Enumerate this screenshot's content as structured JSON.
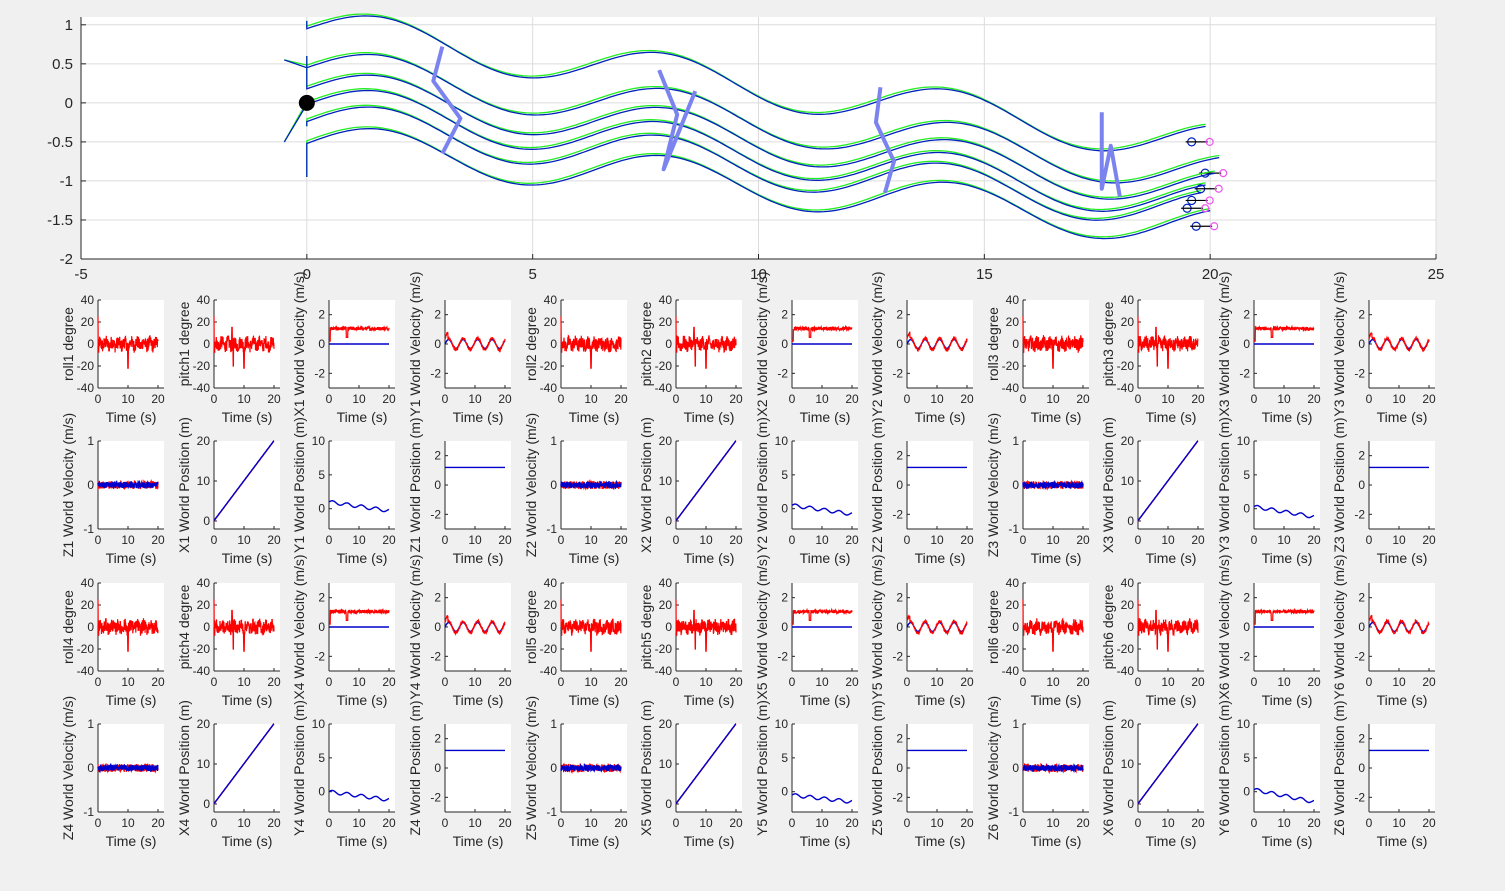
{
  "colors": {
    "figure_bg": "#f0f0f0",
    "axes_bg": "#ffffff",
    "grid": "#dcdcdc",
    "axis": "#262626",
    "measured": "#ff0000",
    "reference": "#0000cc",
    "path_actual": "#0022bb",
    "path_target": "#22ee22",
    "formation": "#7b83ee",
    "marker_start": "#000000",
    "robot_marker": "#ee55ee"
  },
  "chart_data": [
    {
      "type": "line",
      "role": "trajectory",
      "xlim": [
        -5,
        25
      ],
      "ylim": [
        -2,
        1.1
      ],
      "x_ticks": [
        -5,
        0,
        5,
        10,
        15,
        20,
        25
      ],
      "x_tick_labels": [
        "-5",
        "0",
        "5",
        "10",
        "15",
        "20",
        "25"
      ],
      "y_ticks": [
        -2,
        -1.5,
        -1,
        -0.5,
        0,
        0.5,
        1
      ],
      "y_tick_labels": [
        "-2",
        "-1.5",
        "-1",
        "-0.5",
        "0",
        "0.5",
        "1"
      ],
      "grid": true,
      "start_marker": {
        "x": 0,
        "y": 0
      },
      "robot_paths": [
        {
          "start": [
            0,
            1.05
          ],
          "end": [
            19.9,
            -0.5
          ],
          "offset": 0.97
        },
        {
          "start": [
            -0.5,
            0.55
          ],
          "end": [
            20.2,
            -0.9
          ],
          "offset": 0.47
        },
        {
          "start": [
            -0.5,
            -0.5
          ],
          "end": [
            19.9,
            -1.25
          ],
          "offset": 0
        },
        {
          "start": [
            0,
            -0.95
          ],
          "end": [
            20.0,
            -1.58
          ],
          "offset": -0.5
        },
        {
          "start": [
            0,
            -0.3
          ],
          "end": [
            19.8,
            -1.35
          ],
          "offset": -0.22
        },
        {
          "start": [
            0,
            0.6
          ],
          "end": [
            20.1,
            -1.1
          ],
          "offset": 0.2
        }
      ],
      "formations": [
        {
          "points": [
            [
              3.0,
              0.72
            ],
            [
              2.8,
              0.28
            ],
            [
              3.4,
              -0.2
            ],
            [
              3.0,
              -0.65
            ]
          ]
        },
        {
          "points": [
            [
              7.8,
              0.42
            ],
            [
              8.2,
              -0.15
            ],
            [
              7.9,
              -0.85
            ],
            [
              8.6,
              0.15
            ]
          ]
        },
        {
          "points": [
            [
              12.7,
              0.2
            ],
            [
              12.6,
              -0.25
            ],
            [
              13.0,
              -0.75
            ],
            [
              12.8,
              -1.15
            ]
          ]
        },
        {
          "points": [
            [
              17.6,
              -0.12
            ],
            [
              17.6,
              -1.1
            ],
            [
              17.8,
              -0.55
            ],
            [
              18.0,
              -1.2
            ]
          ]
        }
      ]
    },
    {
      "type": "grid_of_line_plots",
      "x_ticks": [
        0,
        10,
        20
      ],
      "xlabel": "Time (s)",
      "column_templates": [
        {
          "kind": "roll",
          "ylim": [
            -40,
            40
          ],
          "yticks": [
            -40,
            -20,
            0,
            20,
            40
          ]
        },
        {
          "kind": "pitch",
          "ylim": [
            -40,
            40
          ],
          "yticks": [
            -40,
            -20,
            0,
            20,
            40
          ]
        },
        {
          "kind": "xvel",
          "ylim": [
            -3,
            3
          ],
          "yticks": [
            -2,
            0,
            2
          ]
        },
        {
          "kind": "yvel",
          "ylim": [
            -3,
            3
          ],
          "yticks": [
            -2,
            0,
            2
          ]
        }
      ],
      "rows": [
        {
          "panels": [
            {
              "ylabel": "roll1 degree",
              "kind": "roll"
            },
            {
              "ylabel": "pitch1 degree",
              "kind": "pitch"
            },
            {
              "ylabel": "X1 World Velocity (m/s)",
              "kind": "xvel"
            },
            {
              "ylabel": "Y1 World Velocity (m/s)",
              "kind": "yvel"
            },
            {
              "ylabel": "roll2 degree",
              "kind": "roll"
            },
            {
              "ylabel": "pitch2 degree",
              "kind": "pitch"
            },
            {
              "ylabel": "X2 World Velocity (m/s)",
              "kind": "xvel"
            },
            {
              "ylabel": "Y2 World Velocity (m/s)",
              "kind": "yvel"
            },
            {
              "ylabel": "roll3 degree",
              "kind": "roll"
            },
            {
              "ylabel": "pitch3 degree",
              "kind": "pitch"
            },
            {
              "ylabel": "X3 World Velocity (m/s)",
              "kind": "xvel"
            },
            {
              "ylabel": "Y3 World Velocity (m/s)",
              "kind": "yvel"
            }
          ]
        },
        {
          "panels": [
            {
              "ylabel": "Z1 World Velocity (m/s)",
              "kind": "zvel",
              "ylim": [
                -1,
                1
              ],
              "yticks": [
                -1,
                0,
                1
              ]
            },
            {
              "ylabel": "X1 World Position (m)",
              "kind": "xpos",
              "ylim": [
                -2,
                20
              ],
              "yticks": [
                0,
                10,
                20
              ]
            },
            {
              "ylabel": "Y1 World Position (m)",
              "kind": "ypos",
              "ylim": [
                -3,
                10
              ],
              "yticks": [
                0,
                5,
                10
              ],
              "start": 1.0,
              "end": -0.3
            },
            {
              "ylabel": "Z1 World Position (m)",
              "kind": "zpos",
              "ylim": [
                -3,
                3
              ],
              "yticks": [
                -2,
                0,
                2
              ]
            },
            {
              "ylabel": "Z2 World Velocity (m/s)",
              "kind": "zvel",
              "ylim": [
                -1,
                1
              ],
              "yticks": [
                -1,
                0,
                1
              ]
            },
            {
              "ylabel": "X2 World Position (m)",
              "kind": "xpos",
              "ylim": [
                -2,
                20
              ],
              "yticks": [
                0,
                10,
                20
              ]
            },
            {
              "ylabel": "Y2 World Position (m)",
              "kind": "ypos",
              "ylim": [
                -3,
                10
              ],
              "yticks": [
                0,
                5,
                10
              ],
              "start": 0.5,
              "end": -0.8
            },
            {
              "ylabel": "Z2 World Position (m)",
              "kind": "zpos",
              "ylim": [
                -3,
                3
              ],
              "yticks": [
                -2,
                0,
                2
              ]
            },
            {
              "ylabel": "Z3 World Velocity (m/s)",
              "kind": "zvel",
              "ylim": [
                -1,
                1
              ],
              "yticks": [
                -1,
                0,
                1
              ]
            },
            {
              "ylabel": "X3 World Position (m)",
              "kind": "xpos",
              "ylim": [
                -2,
                20
              ],
              "yticks": [
                0,
                10,
                20
              ]
            },
            {
              "ylabel": "Y3 World Position (m)",
              "kind": "ypos",
              "ylim": [
                -3,
                10
              ],
              "yticks": [
                0,
                5,
                10
              ],
              "start": 0.3,
              "end": -1.2
            },
            {
              "ylabel": "Z3 World Position (m)",
              "kind": "zpos",
              "ylim": [
                -3,
                3
              ],
              "yticks": [
                -2,
                0,
                2
              ]
            }
          ]
        },
        {
          "panels": [
            {
              "ylabel": "roll4 degree",
              "kind": "roll"
            },
            {
              "ylabel": "pitch4 degree",
              "kind": "pitch"
            },
            {
              "ylabel": "X4 World Velocity (m/s)",
              "kind": "xvel"
            },
            {
              "ylabel": "Y4 World Velocity (m/s)",
              "kind": "yvel"
            },
            {
              "ylabel": "roll5 degree",
              "kind": "roll"
            },
            {
              "ylabel": "pitch5 degree",
              "kind": "pitch"
            },
            {
              "ylabel": "X5 World Velocity (m/s)",
              "kind": "xvel"
            },
            {
              "ylabel": "Y5 World Velocity (m/s)",
              "kind": "yvel"
            },
            {
              "ylabel": "roll6 degree",
              "kind": "roll"
            },
            {
              "ylabel": "pitch6 degree",
              "kind": "pitch"
            },
            {
              "ylabel": "X6 World Velocity (m/s)",
              "kind": "xvel"
            },
            {
              "ylabel": "Y6 World Velocity (m/s)",
              "kind": "yvel"
            }
          ]
        },
        {
          "panels": [
            {
              "ylabel": "Z4 World Velocity (m/s)",
              "kind": "zvel",
              "ylim": [
                -1,
                1
              ],
              "yticks": [
                -1,
                0,
                1
              ]
            },
            {
              "ylabel": "X4 World Position (m)",
              "kind": "xpos",
              "ylim": [
                -2,
                20
              ],
              "yticks": [
                0,
                10,
                20
              ]
            },
            {
              "ylabel": "Y4 World Position (m)",
              "kind": "ypos",
              "ylim": [
                -3,
                10
              ],
              "yticks": [
                0,
                5,
                10
              ],
              "start": 0.0,
              "end": -1.2
            },
            {
              "ylabel": "Z4 World Position (m)",
              "kind": "zpos",
              "ylim": [
                -3,
                3
              ],
              "yticks": [
                -2,
                0,
                2
              ]
            },
            {
              "ylabel": "Z5 World Velocity (m/s)",
              "kind": "zvel",
              "ylim": [
                -1,
                1
              ],
              "yticks": [
                -1,
                0,
                1
              ]
            },
            {
              "ylabel": "X5 World Position (m)",
              "kind": "xpos",
              "ylim": [
                -2,
                20
              ],
              "yticks": [
                0,
                10,
                20
              ]
            },
            {
              "ylabel": "Y5 World Position (m)",
              "kind": "ypos",
              "ylim": [
                -3,
                10
              ],
              "yticks": [
                0,
                5,
                10
              ],
              "start": -0.5,
              "end": -1.5
            },
            {
              "ylabel": "Z5 World Position (m)",
              "kind": "zpos",
              "ylim": [
                -3,
                3
              ],
              "yticks": [
                -2,
                0,
                2
              ]
            },
            {
              "ylabel": "Z6 World Velocity (m/s)",
              "kind": "zvel",
              "ylim": [
                -1,
                1
              ],
              "yticks": [
                -1,
                0,
                1
              ]
            },
            {
              "ylabel": "X6 World Position (m)",
              "kind": "xpos",
              "ylim": [
                -2,
                20
              ],
              "yticks": [
                0,
                10,
                20
              ]
            },
            {
              "ylabel": "Y6 World Position (m)",
              "kind": "ypos",
              "ylim": [
                -3,
                10
              ],
              "yticks": [
                0,
                5,
                10
              ],
              "start": 0.3,
              "end": -1.5
            },
            {
              "ylabel": "Z6 World Position (m)",
              "kind": "zpos",
              "ylim": [
                -3,
                3
              ],
              "yticks": [
                -2,
                0,
                2
              ]
            }
          ]
        }
      ]
    }
  ]
}
